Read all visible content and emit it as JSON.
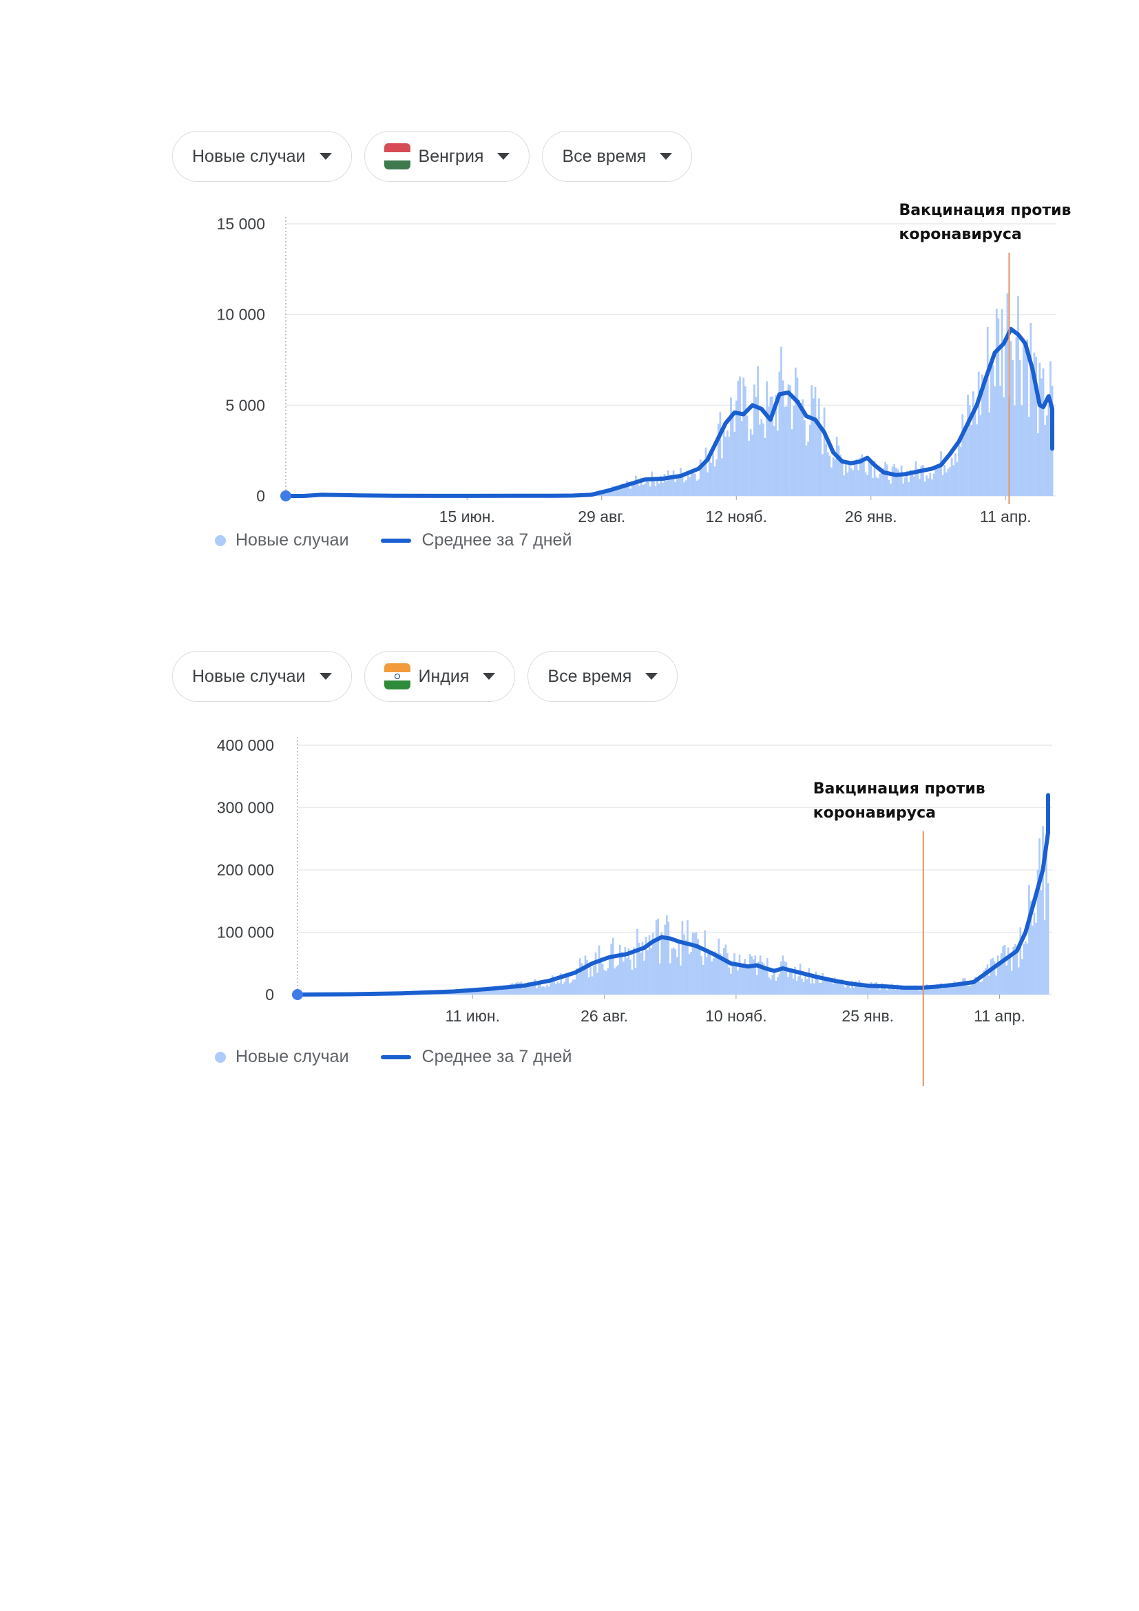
{
  "colors": {
    "bars": "#aecbfa",
    "line": "#1a5fd0",
    "annotation_line": "#e3925f",
    "grid": "#e8eaed"
  },
  "panels": [
    {
      "selectors": {
        "metric": "Новые случаи",
        "country": "Венгрия",
        "country_flag": "hungary-flag-icon",
        "period": "Все время"
      },
      "legend": {
        "bars": "Новые случаи",
        "line": "Среднее за 7 дней"
      },
      "annotation": {
        "line1": "Вакцинация против",
        "line2": "коронавируса",
        "date_index": 403
      }
    },
    {
      "selectors": {
        "metric": "Новые случаи",
        "country": "Индия",
        "country_flag": "india-flag-icon",
        "period": "Все время"
      },
      "legend": {
        "bars": "Новые случаи",
        "line": "Среднее за 7 дней"
      },
      "annotation": {
        "line1": "Вакцинация против",
        "line2": "коронавируса",
        "date_index": 361
      }
    }
  ],
  "chart_data": [
    {
      "type": "bar",
      "title": "",
      "xlabel": "",
      "ylabel": "",
      "ylim": [
        0,
        15000
      ],
      "y_ticks": [
        "15 000",
        "10 000",
        "5 000",
        "0"
      ],
      "y_tick_values": [
        15000,
        10000,
        5000,
        0
      ],
      "x_ticks": [
        "15 июн.",
        "29 авг.",
        "12 нояб.",
        "26 янв.",
        "11 апр."
      ],
      "x_tick_index": [
        101,
        176,
        251,
        326,
        401
      ],
      "n_days": 428,
      "series": [
        {
          "name": "Новые случаи",
          "kind": "bar"
        },
        {
          "name": "Среднее за 7 дней",
          "kind": "line",
          "points": [
            [
              0,
              0
            ],
            [
              10,
              0
            ],
            [
              20,
              60
            ],
            [
              40,
              30
            ],
            [
              60,
              10
            ],
            [
              100,
              5
            ],
            [
              150,
              10
            ],
            [
              160,
              20
            ],
            [
              170,
              60
            ],
            [
              180,
              300
            ],
            [
              190,
              600
            ],
            [
              200,
              900
            ],
            [
              210,
              950
            ],
            [
              220,
              1100
            ],
            [
              230,
              1500
            ],
            [
              235,
              2000
            ],
            [
              240,
              3000
            ],
            [
              245,
              4000
            ],
            [
              250,
              4600
            ],
            [
              255,
              4500
            ],
            [
              260,
              5000
            ],
            [
              265,
              4800
            ],
            [
              270,
              4200
            ],
            [
              275,
              5600
            ],
            [
              280,
              5700
            ],
            [
              285,
              5200
            ],
            [
              290,
              4400
            ],
            [
              295,
              4200
            ],
            [
              300,
              3500
            ],
            [
              305,
              2400
            ],
            [
              310,
              1900
            ],
            [
              315,
              1800
            ],
            [
              320,
              1900
            ],
            [
              324,
              2100
            ],
            [
              328,
              1700
            ],
            [
              333,
              1300
            ],
            [
              340,
              1150
            ],
            [
              345,
              1200
            ],
            [
              350,
              1300
            ],
            [
              355,
              1400
            ],
            [
              360,
              1500
            ],
            [
              365,
              1700
            ],
            [
              370,
              2300
            ],
            [
              375,
              3000
            ],
            [
              380,
              4000
            ],
            [
              385,
              5000
            ],
            [
              390,
              6500
            ],
            [
              395,
              7900
            ],
            [
              400,
              8400
            ],
            [
              404,
              9200
            ],
            [
              408,
              8900
            ],
            [
              412,
              8400
            ],
            [
              416,
              7000
            ],
            [
              420,
              5000
            ],
            [
              422,
              4900
            ],
            [
              425,
              5500
            ],
            [
              428,
              4800
            ],
            [
              432,
              3800
            ],
            [
              436,
              3000
            ],
            [
              440,
              2600
            ]
          ]
        }
      ],
      "annotation_date_index": 403
    },
    {
      "type": "bar",
      "title": "",
      "xlabel": "",
      "ylabel": "",
      "ylim": [
        0,
        400000
      ],
      "y_ticks": [
        "400 000",
        "300 000",
        "200 000",
        "100 000",
        "0"
      ],
      "y_tick_values": [
        400000,
        300000,
        200000,
        100000,
        0
      ],
      "x_ticks": [
        "11 июн.",
        "26 авг.",
        "10 нояб.",
        "25 янв.",
        "11 апр."
      ],
      "x_tick_index": [
        101,
        177,
        253,
        329,
        405
      ],
      "n_days": 434,
      "series": [
        {
          "name": "Новые случаи",
          "kind": "bar"
        },
        {
          "name": "Среднее за 7 дней",
          "kind": "line",
          "points": [
            [
              0,
              0
            ],
            [
              30,
              500
            ],
            [
              60,
              2000
            ],
            [
              90,
              5000
            ],
            [
              110,
              9000
            ],
            [
              130,
              14000
            ],
            [
              145,
              22000
            ],
            [
              160,
              35000
            ],
            [
              170,
              50000
            ],
            [
              180,
              60000
            ],
            [
              190,
              65000
            ],
            [
              200,
              75000
            ],
            [
              205,
              85000
            ],
            [
              210,
              92000
            ],
            [
              215,
              90000
            ],
            [
              220,
              85000
            ],
            [
              230,
              78000
            ],
            [
              240,
              65000
            ],
            [
              250,
              50000
            ],
            [
              260,
              45000
            ],
            [
              265,
              47000
            ],
            [
              270,
              42000
            ],
            [
              275,
              38000
            ],
            [
              280,
              42000
            ],
            [
              290,
              35000
            ],
            [
              300,
              28000
            ],
            [
              310,
              22000
            ],
            [
              320,
              17000
            ],
            [
              330,
              14000
            ],
            [
              340,
              13000
            ],
            [
              350,
              11000
            ],
            [
              360,
              11000
            ],
            [
              370,
              13000
            ],
            [
              380,
              16000
            ],
            [
              390,
              20000
            ],
            [
              400,
              40000
            ],
            [
              410,
              60000
            ],
            [
              415,
              70000
            ],
            [
              420,
              100000
            ],
            [
              425,
              150000
            ],
            [
              430,
              200000
            ],
            [
              435,
              260000
            ],
            [
              440,
              320000
            ]
          ]
        }
      ],
      "annotation_date_index": 361
    }
  ]
}
